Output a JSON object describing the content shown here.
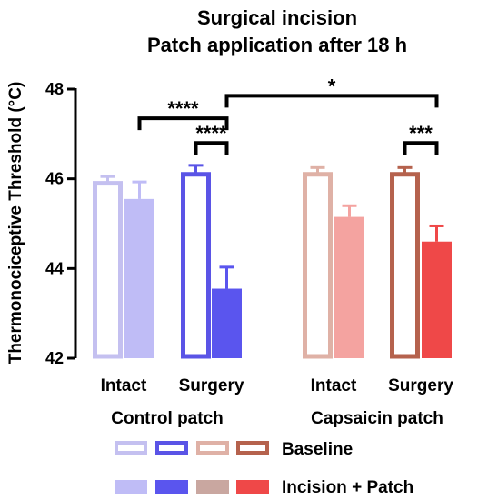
{
  "chart_data": {
    "type": "bar",
    "title": "Surgical incision",
    "subtitle": "Patch application after 18 h",
    "ylabel": "Thermonociceptive Threshold (°C)",
    "ylim": [
      42,
      48
    ],
    "yticks": [
      "42",
      "44",
      "46",
      "48"
    ],
    "categories": [
      "Intact",
      "Surgery",
      "Intact",
      "Surgery"
    ],
    "groups": [
      {
        "label": "Control patch",
        "categories": [
          0,
          1
        ]
      },
      {
        "label": "Capsaicin patch",
        "categories": [
          2,
          3
        ]
      }
    ],
    "series": [
      {
        "name": "Baseline",
        "style": "outline",
        "values": [
          45.9,
          46.1,
          46.1,
          46.1
        ],
        "errors": [
          0.15,
          0.2,
          0.15,
          0.15
        ]
      },
      {
        "name": "Incision + Patch",
        "style": "filled",
        "values": [
          45.55,
          43.55,
          45.15,
          44.6
        ],
        "errors": [
          0.38,
          0.48,
          0.25,
          0.35
        ]
      }
    ],
    "colors": {
      "outline": [
        "#c4c0f0",
        "#5a54e6",
        "#dfb1a6",
        "#b5624d"
      ],
      "filled": [
        "#bfbcf6",
        "#5a55ee",
        "#f4a3a0",
        "#ef4848"
      ],
      "legend_filled_third": "#c9a7a0"
    },
    "significance": [
      {
        "label": "****",
        "from": 1,
        "to": 3,
        "level": 47.35
      },
      {
        "label": "****",
        "from": 2,
        "to": 3,
        "level": 46.8
      },
      {
        "label": "*",
        "from": 3,
        "to": 7,
        "level": 47.85
      },
      {
        "label": "***",
        "from": 6,
        "to": 7,
        "level": 46.8
      }
    ]
  }
}
